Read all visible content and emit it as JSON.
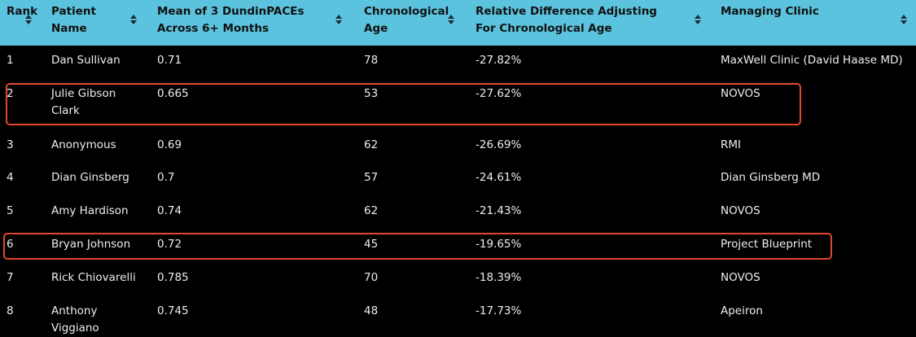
{
  "table": {
    "headers": [
      "Rank",
      "Patient Name",
      "Mean of 3 DundinPACEs Across 6+ Months",
      "Chronological Age",
      "Relative Difference Adjusting For Chronological Age",
      "Managing Clinic"
    ],
    "rows": [
      [
        "1",
        "Dan Sullivan",
        "0.71",
        "78",
        "-27.82%",
        "MaxWell Clinic (David Haase MD)"
      ],
      [
        "2",
        "Julie Gibson Clark",
        "0.665",
        "53",
        "-27.62%",
        "NOVOS"
      ],
      [
        "3",
        "Anonymous",
        "0.69",
        "62",
        "-26.69%",
        "RMI"
      ],
      [
        "4",
        "Dian Ginsberg",
        "0.7",
        "57",
        "-24.61%",
        "Dian Ginsberg MD"
      ],
      [
        "5",
        "Amy Hardison",
        "0.74",
        "62",
        "-21.43%",
        "NOVOS"
      ],
      [
        "6",
        "Bryan Johnson",
        "0.72",
        "45",
        "-19.65%",
        "Project Blueprint"
      ],
      [
        "7",
        "Rick Chiovarelli",
        "0.785",
        "70",
        "-18.39%",
        "NOVOS"
      ],
      [
        "8",
        "Anthony Viggiano",
        "0.745",
        "48",
        "-17.73%",
        "Apeiron"
      ]
    ]
  }
}
